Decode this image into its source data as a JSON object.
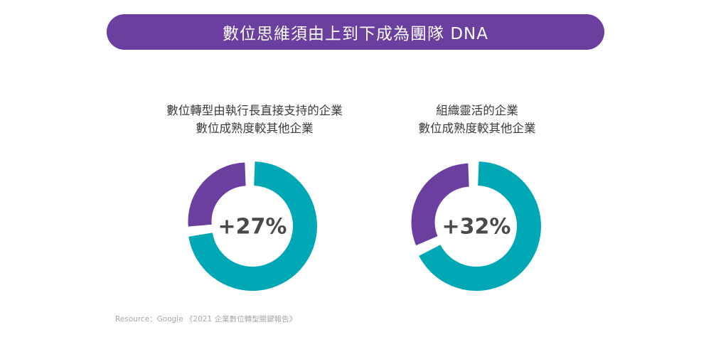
{
  "header": {
    "title": "數位思維須由上到下成為團隊 DNA"
  },
  "colors": {
    "banner": "#6a3fa0",
    "purple": "#6a3fa0",
    "teal": "#00a7b5"
  },
  "chart_data": [
    {
      "type": "pie",
      "title_lines": [
        "數位轉型由執行長直接支持的企業",
        "數位成熟度較其他企業"
      ],
      "center_label": "+27%",
      "slices": [
        {
          "label": "teal",
          "value": 73,
          "color": "#00a7b5"
        },
        {
          "label": "purple",
          "value": 27,
          "color": "#6a3fa0"
        }
      ]
    },
    {
      "type": "pie",
      "title_lines": [
        "組織靈活的企業",
        "數位成熟度較其他企業"
      ],
      "center_label": "+32%",
      "slices": [
        {
          "label": "teal",
          "value": 68,
          "color": "#00a7b5"
        },
        {
          "label": "purple",
          "value": 32,
          "color": "#6a3fa0"
        }
      ]
    }
  ],
  "footer": {
    "source": "Resource：Google 《2021 企業數位轉型關鍵報告》"
  }
}
